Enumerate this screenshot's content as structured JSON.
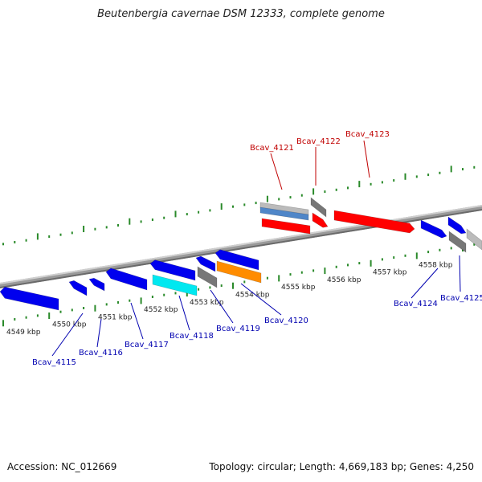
{
  "title": "Beutenbergia cavernae DSM 12333, complete genome",
  "accession": "Accession: NC_012669",
  "topology": "Topology: circular; Length: 4,669,183 bp; Genes: 4,250",
  "colors": {
    "backbone": "#8a8a8a",
    "tick": "#2a8a2a",
    "forward_label": "#c00000",
    "reverse_label": "#0000b0",
    "gene_red": "#ff0000",
    "gene_blue": "#0000ee",
    "gene_grey": "#777777",
    "gene_lightgrey": "#bbbbbb",
    "gene_steelblue": "#4f86c8",
    "gene_cyan": "#00e8f0",
    "gene_orange": "#ff8c00"
  },
  "scale_labels": [
    {
      "text": "4549 kbp",
      "kbp": 4549
    },
    {
      "text": "4550 kbp",
      "kbp": 4550
    },
    {
      "text": "4551 kbp",
      "kbp": 4551
    },
    {
      "text": "4552 kbp",
      "kbp": 4552
    },
    {
      "text": "4553 kbp",
      "kbp": 4553
    },
    {
      "text": "4554 kbp",
      "kbp": 4554
    },
    {
      "text": "4555 kbp",
      "kbp": 4555
    },
    {
      "text": "4556 kbp",
      "kbp": 4556
    },
    {
      "text": "4557 kbp",
      "kbp": 4557
    },
    {
      "text": "4558 kbp",
      "kbp": 4558
    }
  ],
  "forward_genes": [
    {
      "color": "gene_lightgrey",
      "shape": "box"
    },
    {
      "color": "gene_steelblue",
      "shape": "box"
    },
    {
      "color": "gene_red",
      "shape": "box"
    },
    {
      "color": "gene_grey",
      "shape": "box"
    },
    {
      "color": "gene_red",
      "shape": "arrow"
    },
    {
      "color": "gene_red",
      "shape": "arrow"
    },
    {
      "color": "gene_blue",
      "shape": "arrow"
    },
    {
      "color": "gene_blue",
      "shape": "arrow"
    },
    {
      "color": "gene_grey",
      "shape": "box"
    },
    {
      "color": "gene_lightgrey",
      "shape": "box"
    }
  ],
  "reverse_genes": [
    {
      "color": "gene_blue",
      "shape": "arrow"
    },
    {
      "color": "gene_blue",
      "shape": "arrow"
    },
    {
      "color": "gene_blue",
      "shape": "arrow"
    },
    {
      "color": "gene_blue",
      "shape": "arrow"
    },
    {
      "color": "gene_blue",
      "shape": "arrow"
    },
    {
      "color": "gene_blue",
      "shape": "arrow"
    },
    {
      "color": "gene_blue",
      "shape": "arrow"
    },
    {
      "color": "gene_cyan",
      "shape": "box"
    },
    {
      "color": "gene_grey",
      "shape": "box"
    },
    {
      "color": "gene_orange",
      "shape": "box"
    }
  ],
  "gene_labels": [
    {
      "text": "Bcav_4121",
      "strand": "forward"
    },
    {
      "text": "Bcav_4122",
      "strand": "forward"
    },
    {
      "text": "Bcav_4123",
      "strand": "forward"
    },
    {
      "text": "Bcav_4115",
      "strand": "reverse"
    },
    {
      "text": "Bcav_4116",
      "strand": "reverse"
    },
    {
      "text": "Bcav_4117",
      "strand": "reverse"
    },
    {
      "text": "Bcav_4118",
      "strand": "reverse"
    },
    {
      "text": "Bcav_4119",
      "strand": "reverse"
    },
    {
      "text": "Bcav_4120",
      "strand": "reverse"
    },
    {
      "text": "Bcav_4124",
      "strand": "reverse"
    },
    {
      "text": "Bcav_4125",
      "strand": "reverse"
    }
  ]
}
